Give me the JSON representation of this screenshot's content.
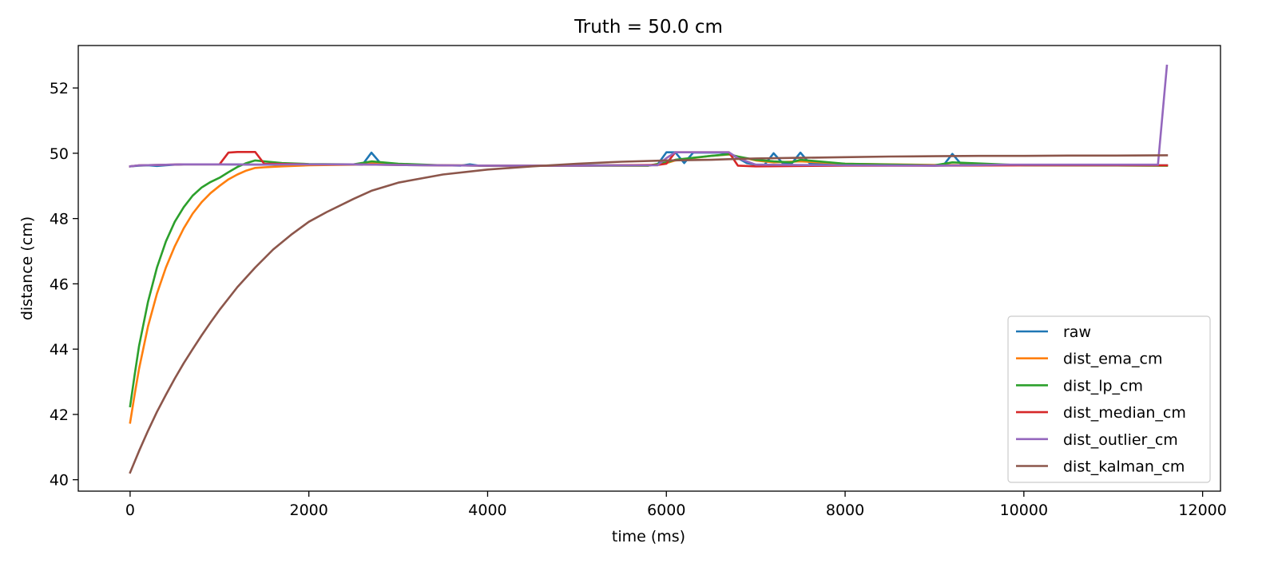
{
  "chart_data": {
    "type": "line",
    "title": "Truth = 50.0 cm",
    "xlabel": "time (ms)",
    "ylabel": "distance (cm)",
    "xlim": [
      -580,
      12200
    ],
    "ylim": [
      39.65,
      53.3
    ],
    "xticks": [
      0,
      2000,
      4000,
      6000,
      8000,
      10000,
      12000
    ],
    "yticks": [
      40,
      42,
      44,
      46,
      48,
      50,
      52
    ],
    "grid": false,
    "legend_position": "lower-right",
    "series": [
      {
        "name": "raw",
        "color": "#1f77b4",
        "x": [
          0,
          100,
          200,
          300,
          400,
          500,
          600,
          1000,
          1500,
          2000,
          2500,
          2600,
          2700,
          2800,
          3000,
          3500,
          3700,
          3800,
          3900,
          4500,
          5000,
          5500,
          5800,
          5900,
          6000,
          6100,
          6200,
          6300,
          6600,
          6700,
          6800,
          6900,
          7000,
          7100,
          7200,
          7300,
          7400,
          7500,
          7600,
          8000,
          9000,
          9100,
          9200,
          9300,
          10000,
          11000,
          11600
        ],
        "y": [
          49.6,
          49.62,
          49.63,
          49.61,
          49.63,
          49.65,
          49.66,
          49.66,
          49.65,
          49.66,
          49.66,
          49.65,
          50.02,
          49.7,
          49.64,
          49.63,
          49.62,
          49.66,
          49.62,
          49.62,
          49.63,
          49.63,
          49.63,
          49.65,
          50.03,
          50.03,
          49.7,
          50.02,
          50.02,
          50.0,
          49.85,
          49.7,
          49.65,
          49.65,
          50.0,
          49.7,
          49.68,
          50.02,
          49.7,
          49.65,
          49.62,
          49.63,
          49.98,
          49.66,
          49.64,
          49.63,
          49.63
        ]
      },
      {
        "name": "dist_ema_cm",
        "color": "#ff7f0e",
        "x": [
          0,
          50,
          100,
          200,
          300,
          400,
          500,
          600,
          700,
          800,
          900,
          1000,
          1100,
          1200,
          1300,
          1400,
          1500,
          1700,
          2000,
          2500,
          2700,
          3000,
          3500,
          4000,
          5000,
          5800,
          6000,
          6100,
          6300,
          6500,
          6700,
          6800,
          7000,
          7200,
          7500,
          8000,
          9000,
          10000,
          11600
        ],
        "y": [
          41.75,
          42.6,
          43.4,
          44.7,
          45.7,
          46.5,
          47.15,
          47.7,
          48.15,
          48.5,
          48.78,
          49.0,
          49.2,
          49.35,
          49.47,
          49.55,
          49.57,
          49.6,
          49.63,
          49.65,
          49.7,
          49.66,
          49.63,
          49.62,
          49.62,
          49.62,
          49.7,
          49.78,
          49.85,
          49.92,
          49.96,
          49.9,
          49.78,
          49.72,
          49.75,
          49.68,
          49.64,
          49.63,
          49.62
        ]
      },
      {
        "name": "dist_lp_cm",
        "color": "#2ca02c",
        "x": [
          0,
          50,
          100,
          200,
          300,
          400,
          500,
          600,
          700,
          800,
          900,
          1000,
          1100,
          1200,
          1300,
          1400,
          1500,
          1700,
          2000,
          2500,
          2700,
          3000,
          3500,
          4000,
          5000,
          5800,
          6000,
          6100,
          6300,
          6500,
          6700,
          6800,
          7000,
          7200,
          7400,
          7500,
          8000,
          9000,
          9200,
          10000,
          11600
        ],
        "y": [
          42.25,
          43.2,
          44.1,
          45.45,
          46.5,
          47.3,
          47.9,
          48.35,
          48.7,
          48.95,
          49.12,
          49.25,
          49.42,
          49.58,
          49.7,
          49.78,
          49.75,
          49.7,
          49.67,
          49.66,
          49.75,
          49.68,
          49.63,
          49.62,
          49.62,
          49.62,
          49.72,
          49.8,
          49.86,
          49.92,
          49.97,
          49.9,
          49.8,
          49.75,
          49.72,
          49.8,
          49.68,
          49.63,
          49.72,
          49.63,
          49.62
        ]
      },
      {
        "name": "dist_median_cm",
        "color": "#d62728",
        "x": [
          0,
          100,
          300,
          600,
          1000,
          1100,
          1200,
          1400,
          1500,
          2000,
          2500,
          3000,
          4000,
          5000,
          5900,
          6000,
          6100,
          6700,
          6800,
          7000,
          8000,
          9000,
          10000,
          11600
        ],
        "y": [
          49.6,
          49.63,
          49.64,
          49.66,
          49.66,
          50.02,
          50.04,
          50.04,
          49.68,
          49.66,
          49.66,
          49.64,
          49.62,
          49.62,
          49.64,
          49.68,
          50.03,
          50.03,
          49.62,
          49.6,
          49.62,
          49.62,
          49.63,
          49.63
        ]
      },
      {
        "name": "dist_outlier_cm",
        "color": "#9467bd",
        "x": [
          0,
          100,
          300,
          600,
          1000,
          1500,
          2000,
          2500,
          3000,
          4000,
          5000,
          5900,
          6000,
          6100,
          6700,
          6800,
          7000,
          8000,
          9000,
          9800,
          10000,
          11000,
          11500,
          11600
        ],
        "y": [
          49.6,
          49.63,
          49.64,
          49.66,
          49.66,
          49.65,
          49.66,
          49.66,
          49.64,
          49.62,
          49.62,
          49.63,
          49.85,
          50.03,
          50.03,
          49.85,
          49.65,
          49.63,
          49.62,
          49.65,
          49.65,
          49.65,
          49.65,
          52.68
        ]
      },
      {
        "name": "dist_kalman_cm",
        "color": "#8c564b",
        "x": [
          0,
          100,
          200,
          300,
          400,
          500,
          600,
          700,
          800,
          900,
          1000,
          1200,
          1400,
          1600,
          1800,
          2000,
          2200,
          2500,
          2700,
          3000,
          3500,
          4000,
          4500,
          5000,
          5500,
          6000,
          6500,
          6700,
          7000,
          7500,
          8000,
          8500,
          9000,
          9500,
          10000,
          10500,
          11000,
          11600
        ],
        "y": [
          40.22,
          40.88,
          41.5,
          42.08,
          42.6,
          43.1,
          43.57,
          44.0,
          44.42,
          44.82,
          45.2,
          45.9,
          46.5,
          47.05,
          47.5,
          47.9,
          48.2,
          48.6,
          48.85,
          49.1,
          49.35,
          49.5,
          49.6,
          49.68,
          49.74,
          49.78,
          49.8,
          49.82,
          49.84,
          49.86,
          49.88,
          49.9,
          49.91,
          49.92,
          49.92,
          49.93,
          49.93,
          49.94
        ]
      }
    ]
  }
}
